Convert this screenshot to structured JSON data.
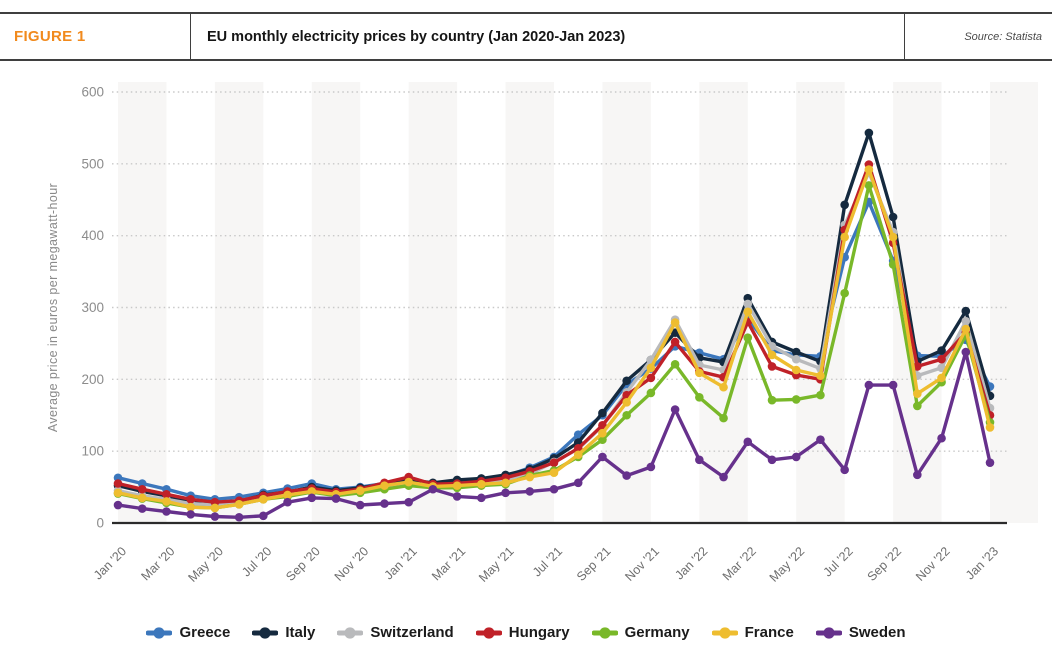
{
  "header": {
    "figure_label": "FIGURE 1",
    "title": "EU monthly electricity prices by country (Jan 2020-Jan 2023)",
    "source": "Source: Statista"
  },
  "chart_data": {
    "type": "line",
    "title": "EU monthly electricity prices by country (Jan 2020-Jan 2023)",
    "xlabel": "",
    "ylabel": "Average price in euros per megawatt-hour",
    "ylim": [
      0,
      600
    ],
    "yticks": [
      0,
      100,
      200,
      300,
      400,
      500,
      600
    ],
    "grid": "horizontal-dotted",
    "legend_position": "bottom",
    "x": [
      "Jan '20",
      "Feb '20",
      "Mar '20",
      "Apr '20",
      "May '20",
      "Jun '20",
      "Jul '20",
      "Aug '20",
      "Sep '20",
      "Oct '20",
      "Nov '20",
      "Dec '20",
      "Jan '21",
      "Feb '21",
      "Mar '21",
      "Apr '21",
      "May '21",
      "Jun '21",
      "Jul '21",
      "Aug '21",
      "Sep '21",
      "Oct '21",
      "Nov '21",
      "Dec '21",
      "Jan '22",
      "Feb '22",
      "Mar '22",
      "Apr '22",
      "May '22",
      "Jun '22",
      "Jul '22",
      "Aug '22",
      "Sep '22",
      "Oct '22",
      "Nov '22",
      "Dec '22",
      "Jan '23"
    ],
    "xtick_every": 2,
    "series": [
      {
        "name": "Greece",
        "color": "#3c77bc",
        "values": [
          63,
          55,
          47,
          38,
          33,
          36,
          42,
          48,
          55,
          47,
          50,
          55,
          58,
          55,
          57,
          60,
          65,
          77,
          92,
          123,
          150,
          193,
          215,
          246,
          237,
          228,
          285,
          240,
          234,
          232,
          370,
          447,
          365,
          233,
          232,
          255,
          190
        ]
      },
      {
        "name": "Italy",
        "color": "#152a3f",
        "values": [
          52,
          44,
          38,
          30,
          26,
          30,
          39,
          43,
          50,
          45,
          49,
          54,
          60,
          56,
          60,
          62,
          67,
          75,
          90,
          112,
          153,
          198,
          227,
          265,
          230,
          224,
          313,
          252,
          238,
          225,
          443,
          543,
          426,
          225,
          240,
          295,
          177
        ]
      },
      {
        "name": "Switzerland",
        "color": "#b9babc",
        "values": [
          45,
          38,
          33,
          27,
          25,
          28,
          34,
          40,
          45,
          41,
          45,
          50,
          56,
          52,
          54,
          56,
          60,
          68,
          85,
          103,
          135,
          182,
          227,
          283,
          220,
          213,
          305,
          246,
          228,
          215,
          415,
          488,
          405,
          205,
          216,
          281,
          160
        ]
      },
      {
        "name": "Hungary",
        "color": "#c02128",
        "values": [
          55,
          47,
          40,
          33,
          29,
          31,
          38,
          44,
          48,
          43,
          47,
          56,
          64,
          54,
          55,
          58,
          63,
          72,
          84,
          104,
          136,
          178,
          202,
          252,
          211,
          203,
          280,
          218,
          206,
          200,
          408,
          499,
          390,
          218,
          228,
          265,
          150
        ]
      },
      {
        "name": "Germany",
        "color": "#79b829",
        "values": [
          41,
          34,
          28,
          22,
          21,
          26,
          33,
          37,
          43,
          38,
          42,
          47,
          52,
          49,
          49,
          52,
          54,
          66,
          73,
          92,
          116,
          150,
          181,
          221,
          175,
          146,
          258,
          171,
          172,
          178,
          320,
          470,
          360,
          163,
          196,
          262,
          140
        ]
      },
      {
        "name": "France",
        "color": "#eebd30",
        "values": [
          42,
          35,
          30,
          22,
          21,
          26,
          33,
          39,
          44,
          40,
          45,
          52,
          57,
          51,
          52,
          54,
          56,
          64,
          70,
          95,
          125,
          168,
          216,
          279,
          209,
          189,
          294,
          234,
          213,
          205,
          398,
          492,
          398,
          180,
          202,
          270,
          133
        ]
      },
      {
        "name": "Sweden",
        "color": "#66318c",
        "values": [
          25,
          20,
          16,
          12,
          9,
          8,
          10,
          29,
          35,
          34,
          25,
          27,
          29,
          47,
          37,
          35,
          42,
          44,
          47,
          56,
          92,
          66,
          78,
          158,
          88,
          64,
          113,
          88,
          92,
          116,
          74,
          192,
          192,
          67,
          118,
          238,
          84
        ]
      }
    ]
  },
  "style": {
    "band_color": "#f7f6f5",
    "grid_color": "#c9c9c9",
    "baseline_color": "#2b2b2b"
  }
}
